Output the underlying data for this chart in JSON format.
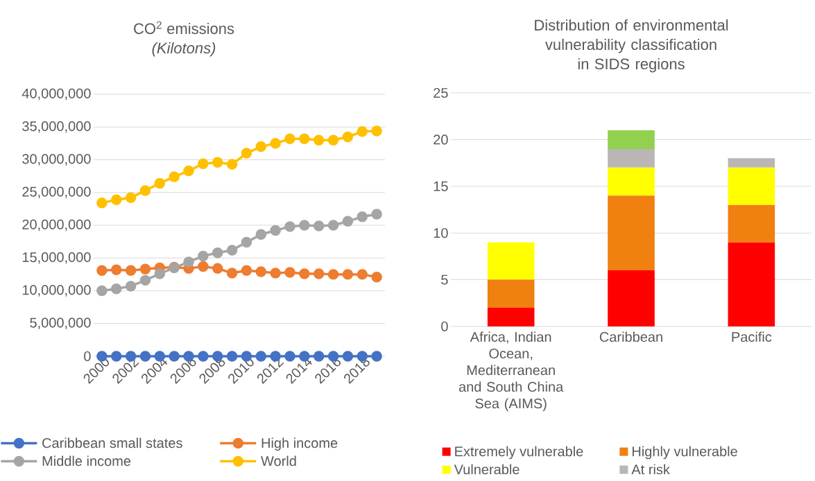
{
  "chart_data": [
    {
      "type": "line",
      "title": "CO$^{2}$ emissions",
      "subtitle": "(Kilotons)",
      "x": [
        2000,
        2001,
        2002,
        2003,
        2004,
        2005,
        2006,
        2007,
        2008,
        2009,
        2010,
        2011,
        2012,
        2013,
        2014,
        2015,
        2016,
        2017,
        2018,
        2019
      ],
      "xlim": [
        2000,
        2019
      ],
      "xticks": [
        2000,
        2002,
        2004,
        2006,
        2008,
        2010,
        2012,
        2014,
        2016,
        2018
      ],
      "ylim": [
        0,
        40000000
      ],
      "yticks": [
        {
          "value": 0,
          "label": "0"
        },
        {
          "value": 5000000,
          "label": "5,000,000"
        },
        {
          "value": 10000000,
          "label": "10,000,000"
        },
        {
          "value": 15000000,
          "label": "15,000,000"
        },
        {
          "value": 20000000,
          "label": "20,000,000"
        },
        {
          "value": 25000000,
          "label": "25,000,000"
        },
        {
          "value": 30000000,
          "label": "30,000,000"
        },
        {
          "value": 35000000,
          "label": "35,000,000"
        },
        {
          "value": 40000000,
          "label": "40,000,000"
        }
      ],
      "grid": "y",
      "legend": "bottom",
      "marker": "circle",
      "series": [
        {
          "name": "Caribbean small states",
          "color": "#4472c4",
          "values": [
            0,
            0,
            0,
            0,
            0,
            0,
            0,
            0,
            0,
            0,
            0,
            0,
            0,
            0,
            0,
            0,
            0,
            0,
            0,
            0
          ]
        },
        {
          "name": "High income",
          "color": "#ed7d31",
          "values": [
            13100000,
            13200000,
            13100000,
            13300000,
            13500000,
            13600000,
            13400000,
            13700000,
            13400000,
            12700000,
            13100000,
            12900000,
            12700000,
            12800000,
            12600000,
            12600000,
            12500000,
            12500000,
            12500000,
            12100000
          ]
        },
        {
          "name": "Middle income",
          "color": "#a5a5a5",
          "values": [
            10000000,
            10300000,
            10700000,
            11600000,
            12600000,
            13500000,
            14400000,
            15300000,
            15800000,
            16200000,
            17400000,
            18600000,
            19200000,
            19800000,
            20000000,
            19900000,
            20000000,
            20600000,
            21300000,
            21700000
          ]
        },
        {
          "name": "World",
          "color": "#ffc000",
          "values": [
            23400000,
            23900000,
            24200000,
            25300000,
            26400000,
            27400000,
            28300000,
            29400000,
            29600000,
            29300000,
            31000000,
            32000000,
            32500000,
            33200000,
            33200000,
            33000000,
            33000000,
            33500000,
            34300000,
            34400000
          ]
        }
      ]
    },
    {
      "type": "bar",
      "stacked": true,
      "title": "Distribution of environmental vulnerability classification in SIDS regions",
      "categories": [
        "Africa, Indian Ocean, Mediterranean and South China Sea (AIMS)",
        "Caribbean",
        "Pacific"
      ],
      "ylim": [
        0,
        25
      ],
      "yticks": [
        0,
        5,
        10,
        15,
        20,
        25
      ],
      "grid": "y",
      "legend": "bottom",
      "series": [
        {
          "name": "Extremely vulnerable",
          "color": "#ff0000",
          "values": [
            2,
            6,
            9
          ]
        },
        {
          "name": "Highly vulnerable",
          "color": "#f08010",
          "values": [
            3,
            8,
            4
          ]
        },
        {
          "name": "Vulnerable",
          "color": "#ffff00",
          "values": [
            4,
            3,
            4
          ]
        },
        {
          "name": "At risk",
          "color": "#bab6b5",
          "values": [
            null,
            2,
            1
          ]
        },
        {
          "color": "#92d050",
          "values": [
            null,
            2,
            null
          ]
        }
      ]
    }
  ]
}
